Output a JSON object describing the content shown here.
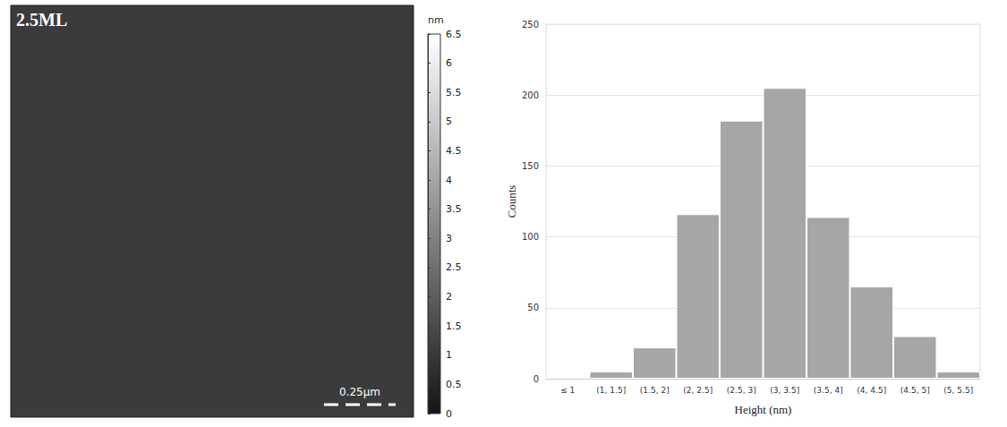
{
  "image_panel": {
    "label": "2.5ML",
    "scale_bar": "0.25μm",
    "colorbar": {
      "unit": "nm",
      "range": [
        0,
        6.5
      ],
      "ticks": [
        0,
        0.5,
        1,
        1.5,
        2,
        2.5,
        3,
        3.5,
        4,
        4.5,
        5,
        5.5,
        6,
        6.5
      ],
      "colors": [
        "#151515",
        "#ffffff"
      ]
    }
  },
  "chart_data": {
    "type": "bar",
    "categories": [
      "≤ 1",
      "(1, 1.5]",
      "(1.5, 2]",
      "(2, 2.5]",
      "(2.5, 3]",
      "(3, 3.5]",
      "(3.5, 4]",
      "(4, 4.5]",
      "(4.5, 5]",
      "(5, 5.5]"
    ],
    "values": [
      1,
      5,
      22,
      116,
      182,
      205,
      114,
      65,
      30,
      5
    ],
    "color": "#a6a6a6",
    "xlabel": "Height (nm)",
    "ylabel": "Counts",
    "ylim": [
      0,
      250
    ],
    "yticks": [
      0,
      50,
      100,
      150,
      200,
      250
    ],
    "grid": true
  }
}
